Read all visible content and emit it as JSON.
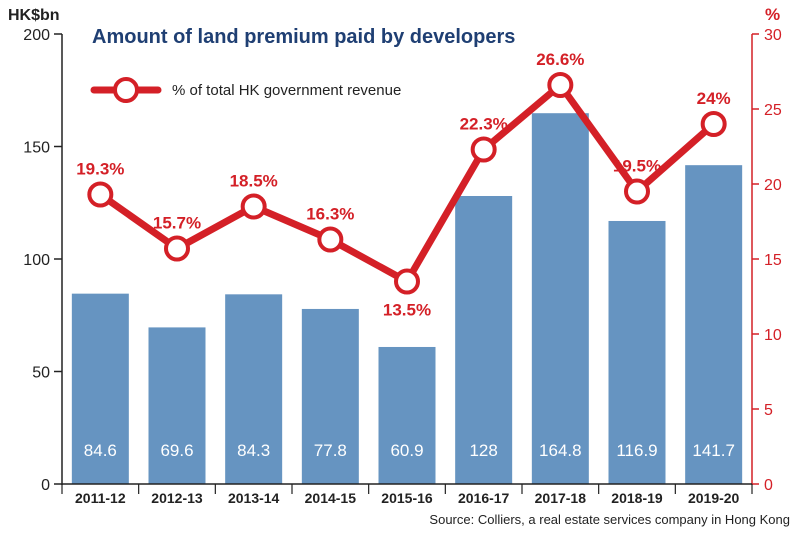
{
  "chart_data": {
    "type": "bar",
    "title": "Amount of land premium paid by developers",
    "ylabel": "HK$bn",
    "y2label": "%",
    "ylim": [
      0,
      200
    ],
    "y2lim": [
      0,
      30
    ],
    "yticks": [
      0,
      50,
      100,
      150,
      200
    ],
    "y2ticks": [
      0,
      5,
      10,
      15,
      20,
      25,
      30
    ],
    "categories": [
      "2011-12",
      "2012-13",
      "2013-14",
      "2014-15",
      "2015-16",
      "2016-17",
      "2017-18",
      "2018-19",
      "2019-20"
    ],
    "series": [
      {
        "type": "bar",
        "axis": "left",
        "values": [
          84.6,
          69.6,
          84.3,
          77.8,
          60.9,
          128,
          164.8,
          116.9,
          141.7
        ],
        "labels": [
          "84.6",
          "69.6",
          "84.3",
          "77.8",
          "60.9",
          "128",
          "164.8",
          "116.9",
          "141.7"
        ],
        "color": "#6694c1"
      },
      {
        "type": "line",
        "axis": "right",
        "name": "% of total HK government revenue",
        "values": [
          19.3,
          15.7,
          18.5,
          16.3,
          13.5,
          22.3,
          26.6,
          19.5,
          24
        ],
        "labels": [
          "19.3%",
          "15.7%",
          "18.5%",
          "16.3%",
          "13.5%",
          "22.3%",
          "26.6%",
          "19.5%",
          "24%"
        ],
        "color": "#d42027"
      }
    ],
    "legend": "top-left",
    "grid": false,
    "source": "Source: Colliers, a real estate services company in Hong Kong"
  }
}
